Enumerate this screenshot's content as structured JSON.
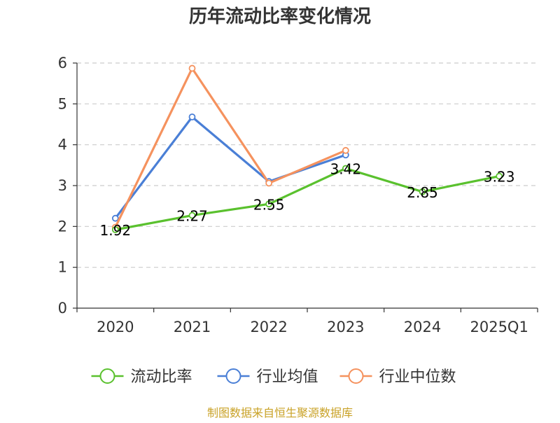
{
  "chart_data": {
    "type": "line",
    "title": "历年流动比率变化情况",
    "categories": [
      "2020",
      "2021",
      "2022",
      "2023",
      "2024",
      "2025Q1"
    ],
    "ylim": [
      0,
      6
    ],
    "yticks": [
      "0",
      "1",
      "2",
      "3",
      "4",
      "5",
      "6"
    ],
    "grid": true,
    "legend_position": "bottom",
    "series": [
      {
        "name": "流动比率",
        "color": "#5ac12e",
        "values": [
          1.92,
          2.27,
          2.55,
          3.42,
          2.85,
          3.23
        ],
        "labels": [
          "1.92",
          "2.27",
          "2.55",
          "3.42",
          "2.85",
          "3.23"
        ]
      },
      {
        "name": "行业均值",
        "color": "#4a7fd6",
        "values": [
          2.2,
          4.68,
          3.1,
          3.75,
          null,
          null
        ]
      },
      {
        "name": "行业中位数",
        "color": "#f5925e",
        "values": [
          1.98,
          5.87,
          3.06,
          3.86,
          null,
          null
        ]
      }
    ],
    "source": "制图数据来自恒生聚源数据库",
    "source_color": "#c9a227"
  }
}
